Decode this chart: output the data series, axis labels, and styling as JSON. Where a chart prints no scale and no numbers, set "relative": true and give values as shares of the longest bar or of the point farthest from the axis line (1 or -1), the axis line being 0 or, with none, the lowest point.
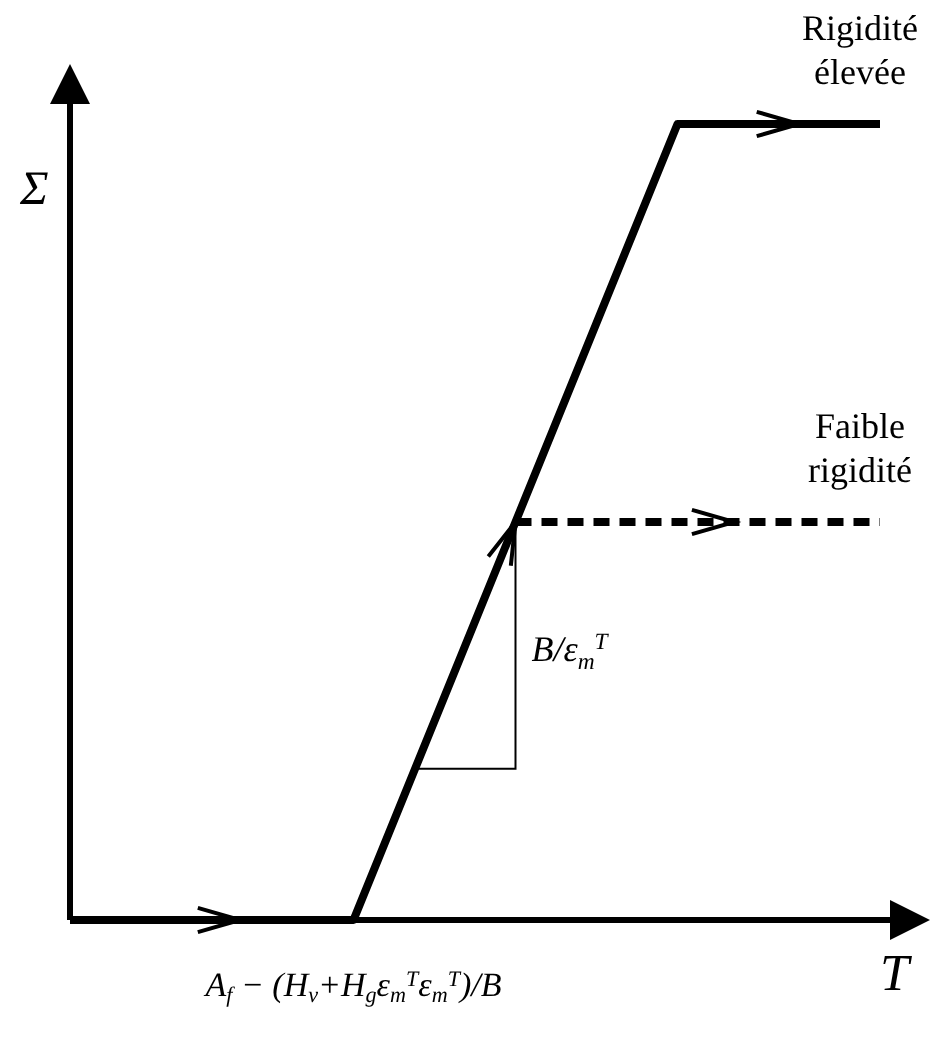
{
  "chart_data": {
    "type": "line",
    "relative": true,
    "xlabel": "T",
    "ylabel": "Σ",
    "categories": [
      null,
      null,
      null,
      null,
      null,
      null,
      null,
      null,
      null,
      null,
      null,
      null,
      null,
      null,
      null,
      null,
      null,
      null,
      null,
      null,
      null
    ],
    "series": [
      {
        "color": "#000000",
        "line_style": "solid",
        "values": [
          0,
          0,
          0,
          0,
          0,
          0,
          0,
          0,
          0.125,
          0.25,
          0.375,
          0.5,
          0.625,
          0.75,
          0.875,
          1,
          1,
          1,
          1,
          1,
          1
        ]
      },
      {
        "color": "#000000",
        "line_style": "dashed",
        "values": [
          null,
          null,
          null,
          null,
          null,
          null,
          null,
          null,
          null,
          null,
          null,
          0.5,
          0.5,
          0.5,
          0.5,
          0.5,
          0.5,
          0.5,
          0.5,
          0.5,
          0.5
        ]
      }
    ],
    "annotations": [
      "Rigidité élevée",
      "Faible rigidité",
      "B/ε$_{m}$$^{T}$",
      "A$_{f}$ − (H$_{v}$+H$_{g}$ε$_{m}$$^{T}$ε$_{m}$$^{T}$)/B"
    ]
  }
}
